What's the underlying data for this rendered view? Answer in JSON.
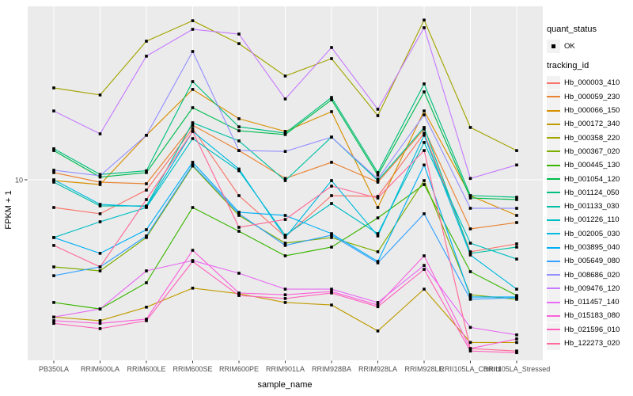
{
  "legend": {
    "quant_title": "quant_status",
    "quant_value": "OK",
    "tracking_title": "tracking_id"
  },
  "chart_data": {
    "type": "line",
    "x_label": "sample_name",
    "y_label": "FPKM + 1",
    "y_scale": "log10",
    "y_tick_labels": [
      "10"
    ],
    "grid": "on",
    "panel_bg": "#EBEBEB",
    "grid_color": "#FFFFFF",
    "point_color": "#000000",
    "point_shape": "square",
    "legend_position": "right",
    "categories": [
      "PB350LA",
      "RRIM600LA",
      "RRIM600LE",
      "RRIM600SE",
      "RRIM600PE",
      "RRIM901LA",
      "RRIM928BA",
      "RRIM928LA",
      "RRIM928LE",
      "RRII105LA_Control",
      "RRII105LA_Stressed"
    ],
    "quant_status": "OK",
    "series": [
      {
        "name": "Hb_000003_410",
        "color": "#F8766D",
        "values": [
          6.68,
          6.1,
          8.61,
          21.1,
          7.94,
          4.37,
          7.94,
          7.85,
          19.7,
          3.51,
          3.94
        ]
      },
      {
        "name": "Hb_000059_230",
        "color": "#EA8331",
        "values": [
          11.1,
          9.66,
          9.44,
          22.1,
          15.3,
          10.2,
          12.9,
          9.66,
          20.9,
          4.9,
          5.37
        ]
      },
      {
        "name": "Hb_000066_150",
        "color": "#D89000",
        "values": [
          9.89,
          9.33,
          19.1,
          37.2,
          24.3,
          20.2,
          26.9,
          6.68,
          27.2,
          7.94,
          5.96
        ]
      },
      {
        "name": "Hb_000172_340",
        "color": "#C09B00",
        "values": [
          1.36,
          1.29,
          1.57,
          2.07,
          1.91,
          1.68,
          1.62,
          1.11,
          2.04,
          0.94,
          0.94
        ]
      },
      {
        "name": "Hb_000358_220",
        "color": "#A3A500",
        "values": [
          38.0,
          34.3,
          75.0,
          101,
          72.4,
          45.2,
          58.2,
          25.4,
          102,
          21.4,
          15.3
        ]
      },
      {
        "name": "Hb_000367_020",
        "color": "#7CAE00",
        "values": [
          2.82,
          2.66,
          4.32,
          12.2,
          5.96,
          3.98,
          4.32,
          3.51,
          9.89,
          1.88,
          1.76
        ]
      },
      {
        "name": "Hb_000445_130",
        "color": "#39B600",
        "values": [
          1.68,
          1.53,
          2.24,
          6.68,
          4.73,
          3.31,
          3.76,
          5.75,
          9.33,
          2.63,
          1.86
        ]
      },
      {
        "name": "Hb_001054_120",
        "color": "#00BB4E",
        "values": [
          15.3,
          10.4,
          11.1,
          28.5,
          20.4,
          19.3,
          32.0,
          10.7,
          35.9,
          7.67,
          7.5
        ]
      },
      {
        "name": "Hb_001124_050",
        "color": "#00BF7D",
        "values": [
          15.7,
          10.8,
          11.4,
          41.7,
          21.6,
          19.7,
          33.1,
          11.1,
          40.3,
          7.94,
          7.76
        ]
      },
      {
        "name": "Hb_001133_030",
        "color": "#00C1A3",
        "values": [
          9.66,
          6.84,
          6.84,
          22.9,
          17.6,
          9.89,
          18.6,
          9.89,
          21.4,
          3.43,
          3.76
        ]
      },
      {
        "name": "Hb_001226_110",
        "color": "#00BFC4",
        "values": [
          4.32,
          5.43,
          6.68,
          18.2,
          11.4,
          4.47,
          7.08,
          4.57,
          17.2,
          3.98,
          3.16
        ]
      },
      {
        "name": "Hb_002005_030",
        "color": "#00BAE0",
        "values": [
          10.0,
          7.0,
          6.76,
          20.2,
          11.7,
          4.32,
          9.89,
          4.42,
          19.1,
          3.35,
          2.04
        ]
      },
      {
        "name": "Hb_003895_040",
        "color": "#00B0F6",
        "values": [
          4.32,
          3.43,
          4.84,
          12.9,
          6.24,
          5.96,
          4.57,
          3.05,
          12.4,
          1.82,
          1.82
        ]
      },
      {
        "name": "Hb_005649_080",
        "color": "#35A2FF",
        "values": [
          2.48,
          2.82,
          4.42,
          12.4,
          6.1,
          3.85,
          4.47,
          2.99,
          6.1,
          1.76,
          1.8
        ]
      },
      {
        "name": "Hb_008686_020",
        "color": "#9590FF",
        "values": [
          11.5,
          10.6,
          19.1,
          64.6,
          15.3,
          15.1,
          18.6,
          10.1,
          25.7,
          6.61,
          6.61
        ]
      },
      {
        "name": "Hb_009476_120",
        "color": "#C77CFF",
        "values": [
          27.2,
          19.5,
          60.3,
          89.1,
          83.2,
          32.4,
          68.4,
          27.9,
          91.2,
          10.2,
          12.4
        ]
      },
      {
        "name": "Hb_011457_140",
        "color": "#E76BF3",
        "values": [
          1.36,
          1.53,
          2.66,
          3.09,
          2.57,
          2.04,
          2.04,
          1.68,
          2.88,
          1.17,
          1.05
        ]
      },
      {
        "name": "Hb_015183_080",
        "color": "#FA62DB",
        "values": [
          1.29,
          1.24,
          1.32,
          3.59,
          1.93,
          1.88,
          1.97,
          1.62,
          3.31,
          0.86,
          0.99
        ]
      },
      {
        "name": "Hb_021596_010",
        "color": "#FF62BC",
        "values": [
          1.24,
          1.15,
          1.29,
          3.05,
          1.86,
          1.78,
          1.93,
          1.58,
          2.72,
          0.83,
          0.81
        ]
      },
      {
        "name": "Hb_122273_020",
        "color": "#FF6A98",
        "values": [
          3.85,
          2.82,
          7.5,
          20.2,
          5.01,
          5.62,
          9.12,
          7.67,
          15.3,
          0.86,
          0.83
        ]
      }
    ]
  }
}
